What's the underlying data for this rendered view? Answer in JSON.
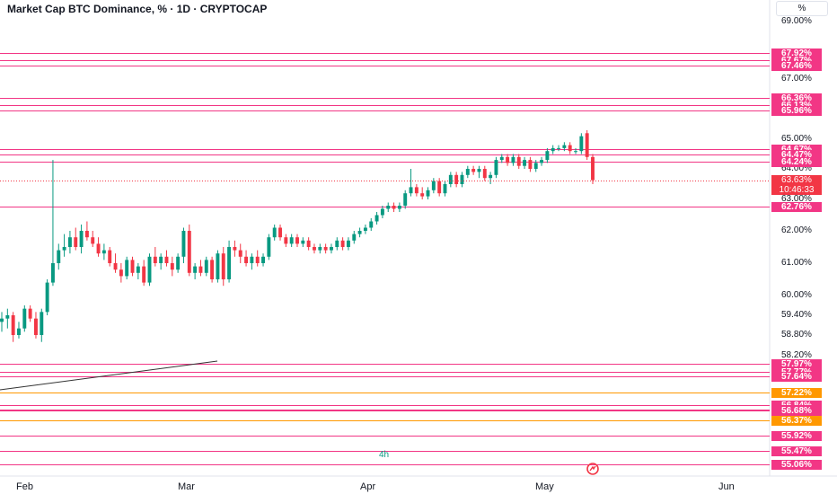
{
  "header": {
    "title": "Market Cap BTC Dominance, % · 1D · CRYPTOCAP",
    "unit_label": "%"
  },
  "interval_note": "4h",
  "chart_data": {
    "type": "candlestick",
    "title": "Market Cap BTC Dominance, % · 1D · CRYPTOCAP",
    "y_unit": "%",
    "x_axis_ticks": [
      "Feb",
      "Mar",
      "Apr",
      "May",
      "Jun"
    ],
    "y_axis_ticks": [
      "69.00%",
      "67.00%",
      "65.00%",
      "64.00%",
      "63.00%",
      "62.00%",
      "61.00%",
      "60.00%",
      "59.40%",
      "58.80%",
      "58.20%"
    ],
    "ylim": [
      54.9,
      69.5
    ],
    "last_price": {
      "label": "63.63%",
      "value": 63.63,
      "countdown": "10:46:33"
    },
    "horizontal_levels": [
      {
        "value": 67.92,
        "label": "67.92%",
        "color": "#f23685"
      },
      {
        "value": 67.67,
        "label": "67.67%",
        "color": "#f23685"
      },
      {
        "value": 67.46,
        "label": "67.46%",
        "color": "#f23685"
      },
      {
        "value": 66.36,
        "label": "66.36%",
        "color": "#f23685"
      },
      {
        "value": 66.13,
        "label": "66.13%",
        "color": "#f23685"
      },
      {
        "value": 65.96,
        "label": "65.96%",
        "color": "#f23685"
      },
      {
        "value": 64.67,
        "label": "64.67%",
        "color": "#f23685"
      },
      {
        "value": 64.47,
        "label": "64.47%",
        "color": "#f23685"
      },
      {
        "value": 64.24,
        "label": "64.24%",
        "color": "#f23685"
      },
      {
        "value": 62.76,
        "label": "62.76%",
        "color": "#f23685"
      },
      {
        "value": 57.97,
        "label": "57.97%",
        "color": "#f23685"
      },
      {
        "value": 57.77,
        "label": "57.77%",
        "color": "#f23685"
      },
      {
        "value": 57.64,
        "label": "57.64%",
        "color": "#f23685"
      },
      {
        "value": 57.22,
        "label": "57.22%",
        "color": "#ff9800"
      },
      {
        "value": 56.84,
        "label": "56.84%",
        "color": "#f23685"
      },
      {
        "value": 56.72,
        "label": "56.72%",
        "color": "#f23685"
      },
      {
        "value": 56.68,
        "label": "56.68%",
        "color": "#f23685"
      },
      {
        "value": 56.37,
        "label": "56.37%",
        "color": "#ff9800"
      },
      {
        "value": 55.92,
        "label": "55.92%",
        "color": "#f23685"
      },
      {
        "value": 55.47,
        "label": "55.47%",
        "color": "#f23685"
      },
      {
        "value": 55.06,
        "label": "55.06%",
        "color": "#f23685"
      }
    ],
    "colors": {
      "up": "#089981",
      "down": "#f23645",
      "level": "#f23685",
      "level_alt": "#ff9800",
      "trend": "#333333"
    },
    "candles_ohlc": [
      [
        59.2,
        59.5,
        58.9,
        59.3
      ],
      [
        59.3,
        59.6,
        59.0,
        59.4
      ],
      [
        59.4,
        59.5,
        58.6,
        58.8
      ],
      [
        58.8,
        59.2,
        58.7,
        59.0
      ],
      [
        59.0,
        59.7,
        58.9,
        59.6
      ],
      [
        59.6,
        59.7,
        59.2,
        59.3
      ],
      [
        59.3,
        59.5,
        58.7,
        58.8
      ],
      [
        58.8,
        59.6,
        58.6,
        59.5
      ],
      [
        59.5,
        60.5,
        59.4,
        60.4
      ],
      [
        60.4,
        64.3,
        60.3,
        61.0
      ],
      [
        61.0,
        61.6,
        60.8,
        61.4
      ],
      [
        61.4,
        61.9,
        61.2,
        61.5
      ],
      [
        61.5,
        62.0,
        61.3,
        61.8
      ],
      [
        61.8,
        62.1,
        61.4,
        61.5
      ],
      [
        61.5,
        62.2,
        61.3,
        62.0
      ],
      [
        62.0,
        62.3,
        61.7,
        61.8
      ],
      [
        61.8,
        62.0,
        61.5,
        61.6
      ],
      [
        61.6,
        61.8,
        61.2,
        61.3
      ],
      [
        61.3,
        61.6,
        61.1,
        61.4
      ],
      [
        61.4,
        61.5,
        60.9,
        61.0
      ],
      [
        61.0,
        61.3,
        60.7,
        60.8
      ],
      [
        60.8,
        61.0,
        60.4,
        60.6
      ],
      [
        60.6,
        61.2,
        60.5,
        61.1
      ],
      [
        61.1,
        61.2,
        60.6,
        60.7
      ],
      [
        60.7,
        61.0,
        60.5,
        60.9
      ],
      [
        60.9,
        61.1,
        60.3,
        60.4
      ],
      [
        60.4,
        61.3,
        60.3,
        61.2
      ],
      [
        61.2,
        61.5,
        60.9,
        61.0
      ],
      [
        61.0,
        61.3,
        60.8,
        61.2
      ],
      [
        61.2,
        61.4,
        60.9,
        61.0
      ],
      [
        61.0,
        61.2,
        60.6,
        60.8
      ],
      [
        60.8,
        61.3,
        60.7,
        61.2
      ],
      [
        61.2,
        62.1,
        61.0,
        62.0
      ],
      [
        62.0,
        62.2,
        60.6,
        60.7
      ],
      [
        60.7,
        61.0,
        60.5,
        60.9
      ],
      [
        60.9,
        61.1,
        60.6,
        60.7
      ],
      [
        60.7,
        61.2,
        60.6,
        61.1
      ],
      [
        61.1,
        61.2,
        60.4,
        60.5
      ],
      [
        60.5,
        61.4,
        60.4,
        61.3
      ],
      [
        61.3,
        61.5,
        60.3,
        60.5
      ],
      [
        60.5,
        61.7,
        60.4,
        61.5
      ],
      [
        61.5,
        61.7,
        61.2,
        61.4
      ],
      [
        61.4,
        61.6,
        61.0,
        61.2
      ],
      [
        61.2,
        61.4,
        60.9,
        61.0
      ],
      [
        61.0,
        61.3,
        60.8,
        61.2
      ],
      [
        61.2,
        61.4,
        60.9,
        61.0
      ],
      [
        61.0,
        61.3,
        60.9,
        61.2
      ],
      [
        61.2,
        61.9,
        61.1,
        61.8
      ],
      [
        61.8,
        62.2,
        61.7,
        62.1
      ],
      [
        62.1,
        62.2,
        61.7,
        61.8
      ],
      [
        61.8,
        61.9,
        61.5,
        61.6
      ],
      [
        61.6,
        61.9,
        61.5,
        61.8
      ],
      [
        61.8,
        61.9,
        61.5,
        61.6
      ],
      [
        61.6,
        61.8,
        61.5,
        61.7
      ],
      [
        61.7,
        61.8,
        61.4,
        61.5
      ],
      [
        61.5,
        61.6,
        61.3,
        61.4
      ],
      [
        61.4,
        61.6,
        61.3,
        61.5
      ],
      [
        61.5,
        61.6,
        61.3,
        61.4
      ],
      [
        61.4,
        61.6,
        61.3,
        61.5
      ],
      [
        61.5,
        61.8,
        61.4,
        61.7
      ],
      [
        61.7,
        61.8,
        61.4,
        61.5
      ],
      [
        61.5,
        61.8,
        61.4,
        61.7
      ],
      [
        61.7,
        62.0,
        61.6,
        61.9
      ],
      [
        61.9,
        62.1,
        61.8,
        62.0
      ],
      [
        62.0,
        62.2,
        61.9,
        62.1
      ],
      [
        62.1,
        62.4,
        62.0,
        62.3
      ],
      [
        62.3,
        62.6,
        62.2,
        62.5
      ],
      [
        62.5,
        62.8,
        62.4,
        62.7
      ],
      [
        62.7,
        62.9,
        62.6,
        62.8
      ],
      [
        62.8,
        62.9,
        62.6,
        62.7
      ],
      [
        62.7,
        62.9,
        62.6,
        62.8
      ],
      [
        62.8,
        63.3,
        62.7,
        63.2
      ],
      [
        63.2,
        64.0,
        63.1,
        63.4
      ],
      [
        63.4,
        63.5,
        63.1,
        63.2
      ],
      [
        63.2,
        63.4,
        63.0,
        63.1
      ],
      [
        63.1,
        63.4,
        63.0,
        63.3
      ],
      [
        63.3,
        63.7,
        63.2,
        63.6
      ],
      [
        63.6,
        63.7,
        63.1,
        63.2
      ],
      [
        63.2,
        63.6,
        63.1,
        63.5
      ],
      [
        63.5,
        63.9,
        63.4,
        63.8
      ],
      [
        63.8,
        63.9,
        63.4,
        63.5
      ],
      [
        63.5,
        63.9,
        63.4,
        63.8
      ],
      [
        63.8,
        64.1,
        63.7,
        64.0
      ],
      [
        64.0,
        64.1,
        63.8,
        63.9
      ],
      [
        63.9,
        64.1,
        63.7,
        64.0
      ],
      [
        64.0,
        64.1,
        63.6,
        63.7
      ],
      [
        63.7,
        63.9,
        63.5,
        63.8
      ],
      [
        63.8,
        64.4,
        63.7,
        64.3
      ],
      [
        64.3,
        64.5,
        64.2,
        64.4
      ],
      [
        64.4,
        64.5,
        64.1,
        64.2
      ],
      [
        64.2,
        64.5,
        64.1,
        64.4
      ],
      [
        64.4,
        64.5,
        64.0,
        64.1
      ],
      [
        64.1,
        64.4,
        64.0,
        64.3
      ],
      [
        64.3,
        64.4,
        63.9,
        64.0
      ],
      [
        64.0,
        64.3,
        63.9,
        64.2
      ],
      [
        64.2,
        64.4,
        64.1,
        64.3
      ],
      [
        64.3,
        64.7,
        64.2,
        64.6
      ],
      [
        64.6,
        64.8,
        64.5,
        64.7
      ],
      [
        64.7,
        64.8,
        64.6,
        64.7
      ],
      [
        64.7,
        64.9,
        64.6,
        64.8
      ],
      [
        64.8,
        64.9,
        64.5,
        64.6
      ],
      [
        64.6,
        64.7,
        64.5,
        64.6
      ],
      [
        64.6,
        65.2,
        64.5,
        65.1
      ],
      [
        65.2,
        65.3,
        64.3,
        64.4
      ],
      [
        64.4,
        64.5,
        63.5,
        63.63
      ]
    ]
  }
}
